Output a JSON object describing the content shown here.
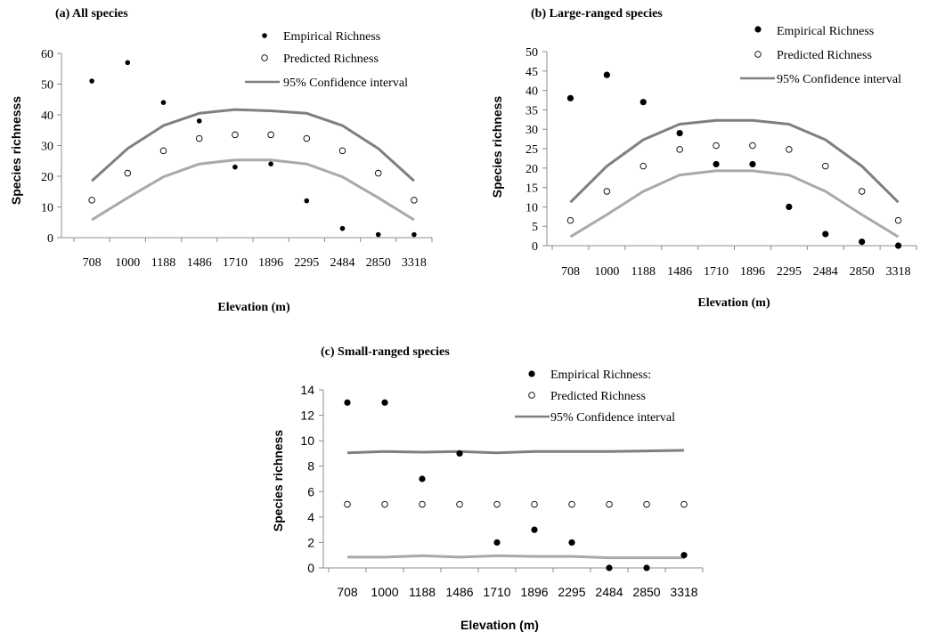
{
  "chart_data": [
    {
      "type": "scatter",
      "title": "(a) All species",
      "xlabel": "Elevation (m)",
      "ylabel": "Species richnesss",
      "categories": [
        "708",
        "1000",
        "1188",
        "1486",
        "1710",
        "1896",
        "2295",
        "2484",
        "2850",
        "3318"
      ],
      "ylim": [
        0,
        60
      ],
      "yticks": [
        0,
        10,
        20,
        30,
        40,
        50,
        60
      ],
      "grid": false,
      "legend_position": "top-center",
      "series": [
        {
          "name": "Empirical Richness",
          "marker": "filled-dot",
          "values": [
            51,
            57,
            44,
            38,
            23,
            24,
            12,
            3,
            1,
            1
          ]
        },
        {
          "name": "Predicted Richness",
          "marker": "open-circle",
          "values": [
            12.2,
            21,
            28.3,
            32.3,
            33.5,
            33.5,
            32.3,
            28.3,
            21,
            12.2
          ]
        },
        {
          "name": "95% Confidence interval",
          "marker": "line",
          "values": [
            18.5,
            29,
            36.5,
            40.5,
            41.7,
            41.3,
            40.5,
            36.5,
            29,
            18.5
          ]
        },
        {
          "marker": "line",
          "values": [
            5.8,
            13,
            19.8,
            24,
            25.3,
            25.3,
            24,
            19.8,
            13,
            5.8
          ]
        }
      ]
    },
    {
      "type": "scatter",
      "title": "(b) Large-ranged species",
      "xlabel": "Elevation (m)",
      "ylabel": "Species richness",
      "categories": [
        "708",
        "1000",
        "1188",
        "1486",
        "1710",
        "1896",
        "2295",
        "2484",
        "2850",
        "3318"
      ],
      "ylim": [
        0,
        50
      ],
      "yticks": [
        0,
        5,
        10,
        15,
        20,
        25,
        30,
        35,
        40,
        45,
        50
      ],
      "grid": false,
      "legend_position": "top-right",
      "series": [
        {
          "name": "Empirical Richness",
          "marker": "filled-dot",
          "values": [
            38,
            44,
            37,
            29,
            21,
            21,
            10,
            3,
            1,
            0
          ]
        },
        {
          "name": "Predicted Richness",
          "marker": "open-circle",
          "values": [
            6.5,
            14,
            20.5,
            24.8,
            25.8,
            25.8,
            24.8,
            20.5,
            14,
            6.5
          ]
        },
        {
          "name": "95% Confidence interval",
          "marker": "line",
          "values": [
            11.2,
            20.5,
            27.3,
            31.3,
            32.3,
            32.3,
            31.3,
            27.3,
            20.5,
            11.2
          ]
        },
        {
          "marker": "line",
          "values": [
            2.3,
            8,
            14,
            18.2,
            19.3,
            19.3,
            18.2,
            14,
            8,
            2.3
          ]
        }
      ]
    },
    {
      "type": "scatter",
      "title": "(c) Small-ranged species",
      "xlabel": "Elevation (m)",
      "ylabel": "Species richness",
      "categories": [
        "708",
        "1000",
        "1188",
        "1486",
        "1710",
        "1896",
        "2295",
        "2484",
        "2850",
        "3318"
      ],
      "ylim": [
        0,
        14
      ],
      "yticks": [
        0,
        2,
        4,
        6,
        8,
        10,
        12,
        14
      ],
      "grid": false,
      "legend_position": "top-right",
      "series": [
        {
          "name": "Empirical Richness:",
          "marker": "filled-dot",
          "values": [
            13,
            13,
            7,
            9,
            2,
            3,
            2,
            0,
            0,
            1
          ]
        },
        {
          "name": "Predicted Richness",
          "marker": "open-circle",
          "values": [
            5,
            5,
            5,
            5,
            5,
            5,
            5,
            5,
            5,
            5
          ]
        },
        {
          "name": "95% Confidence interval",
          "marker": "line",
          "values": [
            9.05,
            9.15,
            9.1,
            9.15,
            9.05,
            9.15,
            9.15,
            9.15,
            9.2,
            9.25
          ]
        },
        {
          "marker": "line",
          "values": [
            0.85,
            0.85,
            0.95,
            0.85,
            0.95,
            0.9,
            0.9,
            0.8,
            0.8,
            0.8
          ]
        }
      ]
    }
  ],
  "colors": {
    "empirical": "#000000",
    "predicted": "#000000",
    "upper_ci": "#7f7f7f",
    "lower_ci": "#a9a9a9"
  }
}
